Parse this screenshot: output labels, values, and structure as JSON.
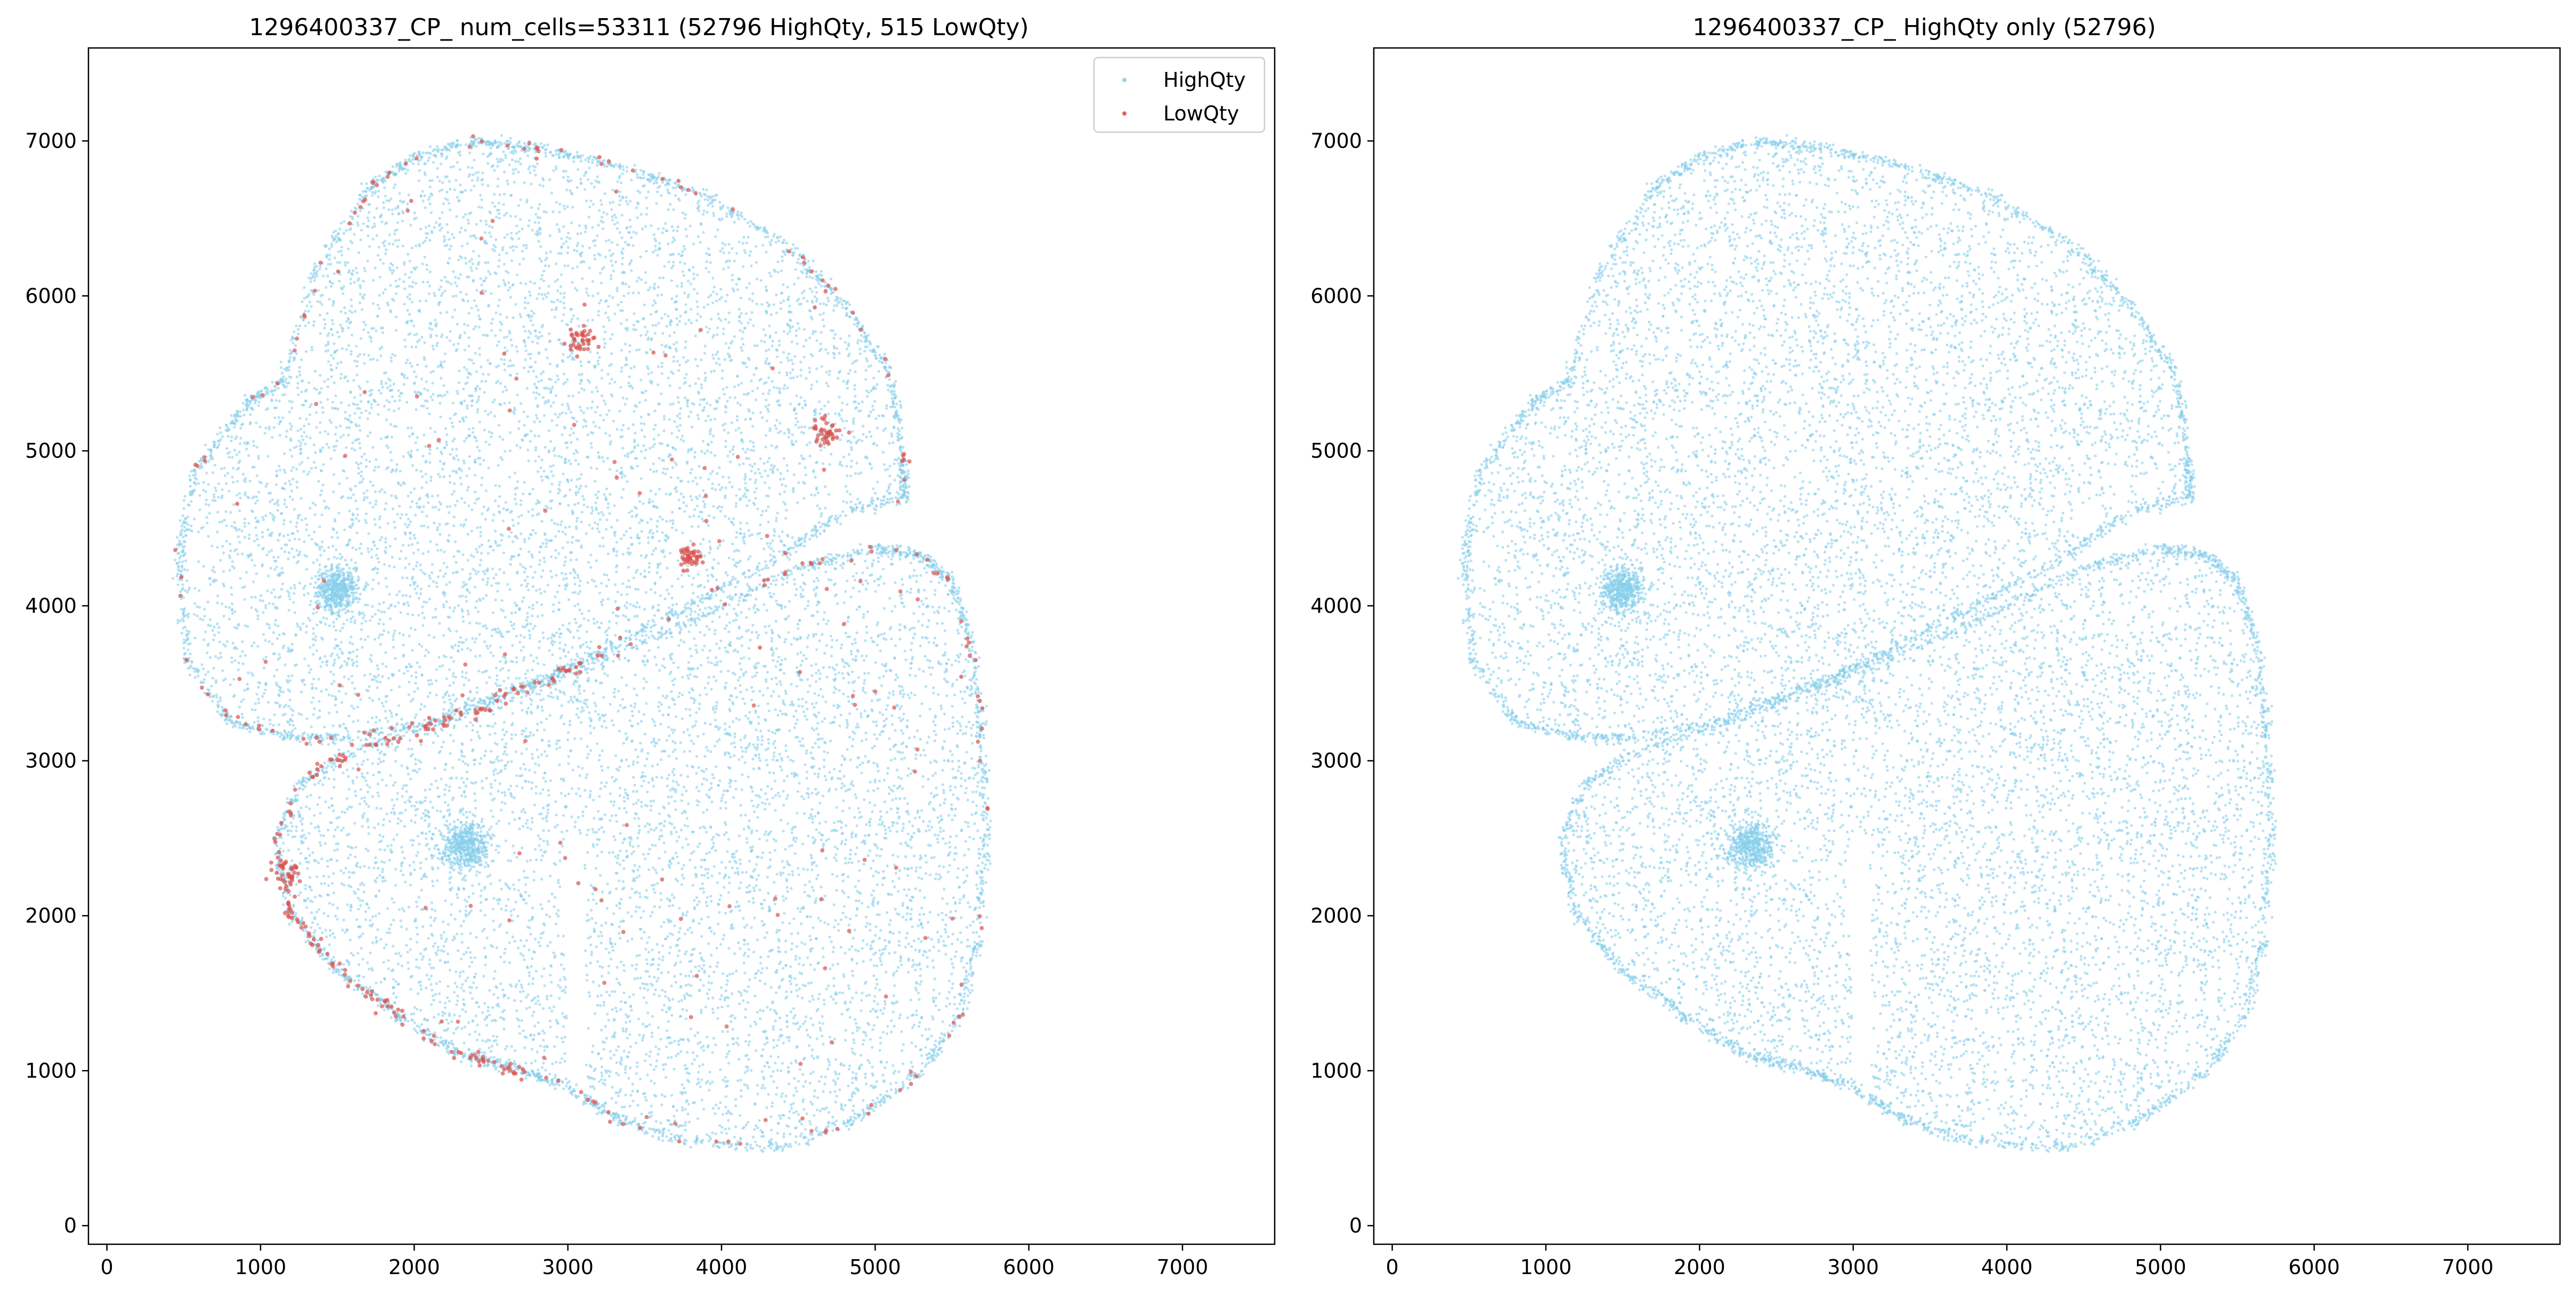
{
  "figure": {
    "background": "#ffffff",
    "colors": {
      "high": "#87CEEB",
      "low": "#D9534F",
      "axes": "#000000"
    }
  },
  "chart_data": [
    {
      "type": "scatter",
      "title": "1296400337_CP_ num_cells=53311 (52796 HighQty, 515 LowQty)",
      "xlabel": "",
      "ylabel": "",
      "xlim": [
        -120,
        7600
      ],
      "ylim": [
        -120,
        7600
      ],
      "xticks": [
        "0",
        "1000",
        "2000",
        "3000",
        "4000",
        "5000",
        "6000",
        "7000"
      ],
      "yticks": [
        "0",
        "1000",
        "2000",
        "3000",
        "4000",
        "5000",
        "6000",
        "7000"
      ],
      "grid": false,
      "legend": {
        "placement": "top-right",
        "entries": [
          "HighQty",
          "LowQty"
        ]
      },
      "series": [
        {
          "name": "HighQty",
          "count": 52796,
          "color": "#87CEEB",
          "marker_size": 1.2,
          "alpha": 0.6
        },
        {
          "name": "LowQty",
          "count": 515,
          "color": "#D9534F",
          "marker_size": 1.8,
          "alpha": 0.7
        }
      ],
      "tissue": {
        "upper_lobe_outline": [
          [
            560,
            4850
          ],
          [
            900,
            5300
          ],
          [
            1150,
            5450
          ],
          [
            1350,
            6150
          ],
          [
            1700,
            6700
          ],
          [
            2000,
            6900
          ],
          [
            2400,
            7000
          ],
          [
            2800,
            6950
          ],
          [
            3300,
            6850
          ],
          [
            3900,
            6650
          ],
          [
            4400,
            6350
          ],
          [
            4800,
            5950
          ],
          [
            5100,
            5500
          ],
          [
            5180,
            4950
          ],
          [
            5200,
            4700
          ],
          [
            4800,
            4600
          ],
          [
            4350,
            4300
          ],
          [
            3800,
            4000
          ],
          [
            3200,
            3700
          ],
          [
            2900,
            3550
          ],
          [
            2500,
            3400
          ],
          [
            2100,
            3250
          ],
          [
            1600,
            3150
          ],
          [
            1200,
            3150
          ],
          [
            800,
            3250
          ],
          [
            520,
            3650
          ],
          [
            470,
            4300
          ]
        ],
        "lower_lobe_outline": [
          [
            1560,
            3050
          ],
          [
            2200,
            3250
          ],
          [
            2700,
            3450
          ],
          [
            3300,
            3700
          ],
          [
            3900,
            3950
          ],
          [
            4500,
            4250
          ],
          [
            5000,
            4370
          ],
          [
            5300,
            4330
          ],
          [
            5500,
            4150
          ],
          [
            5600,
            3850
          ],
          [
            5680,
            3300
          ],
          [
            5720,
            2600
          ],
          [
            5680,
            1900
          ],
          [
            5550,
            1350
          ],
          [
            5300,
            1000
          ],
          [
            4900,
            700
          ],
          [
            4400,
            500
          ],
          [
            3700,
            550
          ],
          [
            3300,
            700
          ],
          [
            3000,
            900
          ],
          [
            2700,
            1000
          ],
          [
            2300,
            1100
          ],
          [
            1900,
            1350
          ],
          [
            1500,
            1650
          ],
          [
            1200,
            2000
          ],
          [
            1100,
            2450
          ],
          [
            1250,
            2850
          ]
        ],
        "upper_notch_center": [
          4530,
          4560
        ],
        "lower_notch_center": [
          3050,
          1700
        ],
        "dense_blobs": [
          {
            "center": [
              1500,
              4100
            ],
            "radius": 120
          },
          {
            "center": [
              2330,
              2450
            ],
            "radius": 130
          }
        ],
        "lowqty_clusters": [
          {
            "center": [
              3090,
              5720
            ],
            "radius": 70,
            "count": 40
          },
          {
            "center": [
              4680,
              5130
            ],
            "radius": 70,
            "count": 40
          },
          {
            "center": [
              3800,
              4300
            ],
            "radius": 70,
            "count": 45
          },
          {
            "center": [
              1180,
              2290
            ],
            "radius": 80,
            "count": 35
          }
        ]
      }
    },
    {
      "type": "scatter",
      "title": "1296400337_CP_ HighQty only (52796)",
      "xlabel": "",
      "ylabel": "",
      "xlim": [
        -120,
        7600
      ],
      "ylim": [
        -120,
        7600
      ],
      "xticks": [
        "0",
        "1000",
        "2000",
        "3000",
        "4000",
        "5000",
        "6000",
        "7000"
      ],
      "yticks": [
        "0",
        "1000",
        "2000",
        "3000",
        "4000",
        "5000",
        "6000",
        "7000"
      ],
      "grid": false,
      "series": [
        {
          "name": "HighQty",
          "count": 52796,
          "color": "#87CEEB",
          "marker_size": 1.2,
          "alpha": 0.6
        }
      ]
    }
  ]
}
